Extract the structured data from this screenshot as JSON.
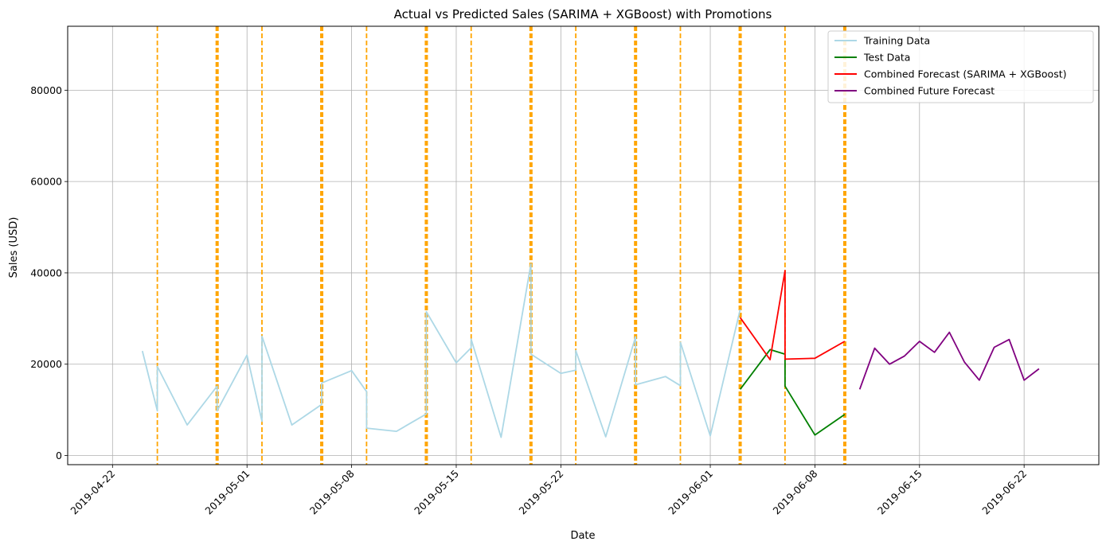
{
  "chart_data": {
    "type": "line",
    "title": "Actual vs Predicted Sales (SARIMA + XGBoost) with Promotions",
    "xlabel": "Date",
    "ylabel": "Sales (USD)",
    "xlim": [
      "2019-04-19",
      "2019-06-27"
    ],
    "ylim": [
      -2000,
      94000
    ],
    "grid": true,
    "legend_position": "top-right",
    "x_ticks": [
      "2019-04-22",
      "2019-05-01",
      "2019-05-08",
      "2019-05-15",
      "2019-05-22",
      "2019-06-01",
      "2019-06-08",
      "2019-06-15",
      "2019-06-22"
    ],
    "y_ticks": [
      0,
      20000,
      40000,
      60000,
      80000
    ],
    "y_tick_labels": [
      "0",
      "20000",
      "40000",
      "60000",
      "80000"
    ],
    "series": [
      {
        "name": "Training Data",
        "color": "#add8e6",
        "points": [
          [
            "2019-04-24",
            22900
          ],
          [
            "2019-04-25",
            9800
          ],
          [
            "2019-04-25",
            19500
          ],
          [
            "2019-04-27",
            6700
          ],
          [
            "2019-04-29",
            15200
          ],
          [
            "2019-04-29",
            9800
          ],
          [
            "2019-05-01",
            22000
          ],
          [
            "2019-05-02",
            7500
          ],
          [
            "2019-05-02",
            26100
          ],
          [
            "2019-05-04",
            6700
          ],
          [
            "2019-05-06",
            11200
          ],
          [
            "2019-05-06",
            15900
          ],
          [
            "2019-05-08",
            18600
          ],
          [
            "2019-05-09",
            14000
          ],
          [
            "2019-05-09",
            6000
          ],
          [
            "2019-05-11",
            5300
          ],
          [
            "2019-05-13",
            9100
          ],
          [
            "2019-05-13",
            31500
          ],
          [
            "2019-05-15",
            20300
          ],
          [
            "2019-05-16",
            23600
          ],
          [
            "2019-05-16",
            25500
          ],
          [
            "2019-05-18",
            4000
          ],
          [
            "2019-05-20",
            42000
          ],
          [
            "2019-05-20",
            22200
          ],
          [
            "2019-05-22",
            18000
          ],
          [
            "2019-05-23",
            18700
          ],
          [
            "2019-05-23",
            23000
          ],
          [
            "2019-05-25",
            4100
          ],
          [
            "2019-05-27",
            26000
          ],
          [
            "2019-05-27",
            15500
          ],
          [
            "2019-05-29",
            17300
          ],
          [
            "2019-05-30",
            15300
          ],
          [
            "2019-05-30",
            24800
          ],
          [
            "2019-06-01",
            4300
          ],
          [
            "2019-06-03",
            32000
          ]
        ]
      },
      {
        "name": "Test Data",
        "color": "#008000",
        "points": [
          [
            "2019-06-03",
            14500
          ],
          [
            "2019-06-05",
            23200
          ],
          [
            "2019-06-06",
            22200
          ],
          [
            "2019-06-06",
            15200
          ],
          [
            "2019-06-08",
            4500
          ],
          [
            "2019-06-10",
            9000
          ]
        ]
      },
      {
        "name": "Combined Forecast (SARIMA + XGBoost)",
        "color": "#ff0000",
        "points": [
          [
            "2019-06-03",
            30200
          ],
          [
            "2019-06-05",
            21000
          ],
          [
            "2019-06-06",
            40500
          ],
          [
            "2019-06-06",
            21100
          ],
          [
            "2019-06-08",
            21300
          ],
          [
            "2019-06-10",
            25000
          ]
        ]
      },
      {
        "name": "Combined Future Forecast",
        "color": "#800080",
        "points": [
          [
            "2019-06-11",
            14500
          ],
          [
            "2019-06-12",
            23500
          ],
          [
            "2019-06-13",
            20000
          ],
          [
            "2019-06-14",
            21800
          ],
          [
            "2019-06-15",
            25000
          ],
          [
            "2019-06-16",
            22600
          ],
          [
            "2019-06-17",
            27000
          ],
          [
            "2019-06-18",
            20500
          ],
          [
            "2019-06-19",
            16500
          ],
          [
            "2019-06-20",
            23700
          ],
          [
            "2019-06-21",
            25400
          ],
          [
            "2019-06-22",
            16500
          ],
          [
            "2019-06-23",
            19000
          ]
        ]
      }
    ],
    "promotion_lines": {
      "color": "#ffa500",
      "style": "dashed",
      "dates": [
        "2019-04-25",
        "2019-04-29",
        "2019-05-02",
        "2019-05-06",
        "2019-05-09",
        "2019-05-13",
        "2019-05-16",
        "2019-05-20",
        "2019-05-23",
        "2019-05-27",
        "2019-05-30",
        "2019-06-03",
        "2019-06-06",
        "2019-06-10"
      ],
      "thick_dates": [
        "2019-04-29",
        "2019-05-06",
        "2019-05-13",
        "2019-05-20",
        "2019-05-27",
        "2019-06-03",
        "2019-06-10"
      ]
    }
  }
}
